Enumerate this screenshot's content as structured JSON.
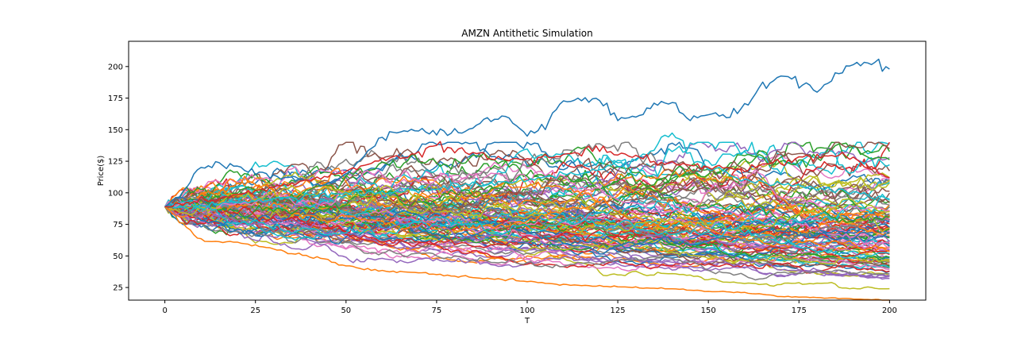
{
  "chart_data": {
    "type": "line",
    "title": "AMZN Antithetic Simulation",
    "xlabel": "T",
    "ylabel": "Price($)",
    "xlim": [
      -10,
      210
    ],
    "ylim": [
      15,
      220
    ],
    "xticks": [
      0,
      25,
      50,
      75,
      100,
      125,
      150,
      175,
      200
    ],
    "yticks": [
      25,
      50,
      75,
      100,
      125,
      150,
      175,
      200
    ],
    "grid": false,
    "legend": "none",
    "start_value": 89,
    "num_steps": 200,
    "colors": [
      "#1f77b4",
      "#ff7f0e",
      "#2ca02c",
      "#d62728",
      "#9467bd",
      "#8c564b",
      "#e377c2",
      "#7f7f7f",
      "#bcbd22",
      "#17becf"
    ],
    "highlighted_series": [
      {
        "color": "#1f77b4",
        "points": [
          [
            0,
            89
          ],
          [
            5,
            100
          ],
          [
            10,
            122
          ],
          [
            20,
            122
          ],
          [
            25,
            115
          ],
          [
            35,
            112
          ],
          [
            45,
            106
          ],
          [
            50,
            113
          ],
          [
            55,
            130
          ],
          [
            60,
            145
          ],
          [
            70,
            148
          ],
          [
            80,
            147
          ],
          [
            90,
            158
          ],
          [
            95,
            160
          ],
          [
            100,
            145
          ],
          [
            105,
            155
          ],
          [
            110,
            172
          ],
          [
            120,
            172
          ],
          [
            125,
            158
          ],
          [
            130,
            160
          ],
          [
            135,
            168
          ],
          [
            140,
            172
          ],
          [
            145,
            158
          ],
          [
            150,
            160
          ],
          [
            160,
            165
          ],
          [
            165,
            185
          ],
          [
            170,
            192
          ],
          [
            180,
            182
          ],
          [
            185,
            192
          ],
          [
            190,
            200
          ],
          [
            195,
            202
          ],
          [
            200,
            198
          ]
        ]
      },
      {
        "color": "#ff7f0e",
        "points": [
          [
            0,
            89
          ],
          [
            5,
            75
          ],
          [
            10,
            62
          ],
          [
            20,
            61
          ],
          [
            30,
            55
          ],
          [
            40,
            50
          ],
          [
            50,
            42
          ],
          [
            60,
            38
          ],
          [
            70,
            37
          ],
          [
            80,
            34
          ],
          [
            90,
            32
          ],
          [
            100,
            30
          ],
          [
            110,
            27
          ],
          [
            120,
            26
          ],
          [
            130,
            25
          ],
          [
            140,
            24
          ],
          [
            150,
            22
          ],
          [
            160,
            21
          ],
          [
            170,
            18
          ],
          [
            180,
            17
          ],
          [
            190,
            16
          ],
          [
            200,
            15
          ]
        ]
      },
      {
        "color": "#17becf",
        "points": [
          [
            0,
            89
          ],
          [
            20,
            92
          ],
          [
            40,
            98
          ],
          [
            60,
            100
          ],
          [
            80,
            105
          ],
          [
            100,
            110
          ],
          [
            120,
            118
          ],
          [
            130,
            125
          ],
          [
            135,
            135
          ],
          [
            140,
            148
          ],
          [
            145,
            130
          ],
          [
            150,
            120
          ],
          [
            160,
            110
          ],
          [
            175,
            105
          ],
          [
            190,
            100
          ],
          [
            200,
            95
          ]
        ]
      },
      {
        "color": "#d62728",
        "points": [
          [
            0,
            89
          ],
          [
            20,
            98
          ],
          [
            40,
            110
          ],
          [
            60,
            125
          ],
          [
            70,
            130
          ],
          [
            75,
            138
          ],
          [
            85,
            130
          ],
          [
            100,
            125
          ],
          [
            110,
            130
          ],
          [
            120,
            135
          ],
          [
            135,
            125
          ],
          [
            150,
            120
          ],
          [
            160,
            118
          ],
          [
            170,
            125
          ],
          [
            180,
            130
          ],
          [
            190,
            128
          ],
          [
            200,
            112
          ]
        ]
      }
    ]
  }
}
